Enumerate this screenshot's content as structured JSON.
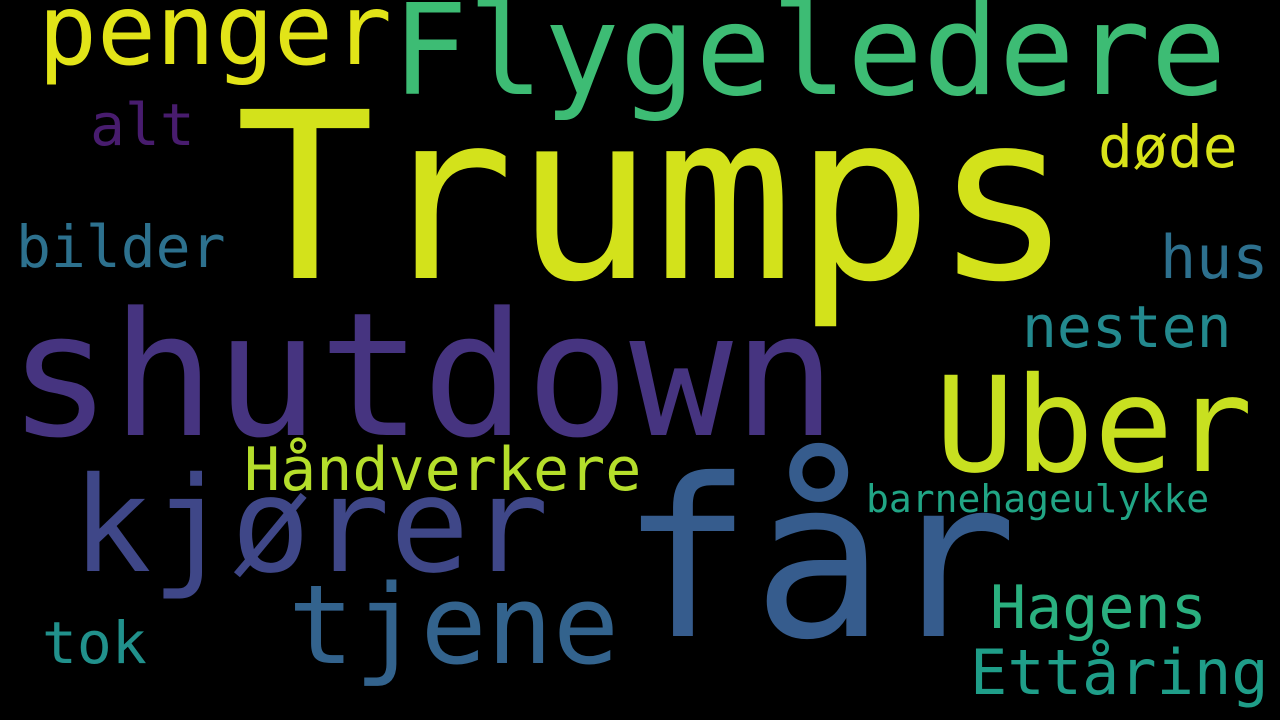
{
  "words": [
    {
      "id": "w-trumps",
      "text": "Trumps",
      "color": "#d3e21b"
    },
    {
      "id": "w-shutdown",
      "text": "shutdown",
      "color": "#463480"
    },
    {
      "id": "w-far",
      "text": "får",
      "color": "#365c8d"
    },
    {
      "id": "w-flygeledere",
      "text": "Flygeledere",
      "color": "#3dbc74"
    },
    {
      "id": "w-uber",
      "text": "Uber",
      "color": "#c8e020"
    },
    {
      "id": "w-kjorer",
      "text": "kjører",
      "color": "#3f4788"
    },
    {
      "id": "w-tjene",
      "text": "tjene",
      "color": "#33638d"
    },
    {
      "id": "w-penger",
      "text": "penger",
      "color": "#e2e418"
    },
    {
      "id": "w-handverkere",
      "text": "Håndverkere",
      "color": "#b5de2b"
    },
    {
      "id": "w-hagens",
      "text": "Hagens",
      "color": "#2ab07f"
    },
    {
      "id": "w-ettaring",
      "text": "Ettåring",
      "color": "#1f9e89"
    },
    {
      "id": "w-nesten",
      "text": "nesten",
      "color": "#23898e"
    },
    {
      "id": "w-hus",
      "text": "hus",
      "color": "#2d708e"
    },
    {
      "id": "w-bilder",
      "text": "bilder",
      "color": "#2d718e"
    },
    {
      "id": "w-dode",
      "text": "døde",
      "color": "#d8e219"
    },
    {
      "id": "w-alt",
      "text": "alt",
      "color": "#481c6e"
    },
    {
      "id": "w-tok",
      "text": "tok",
      "color": "#21918c"
    },
    {
      "id": "w-barnehage",
      "text": "barnehageulykke",
      "color": "#21a585"
    }
  ]
}
